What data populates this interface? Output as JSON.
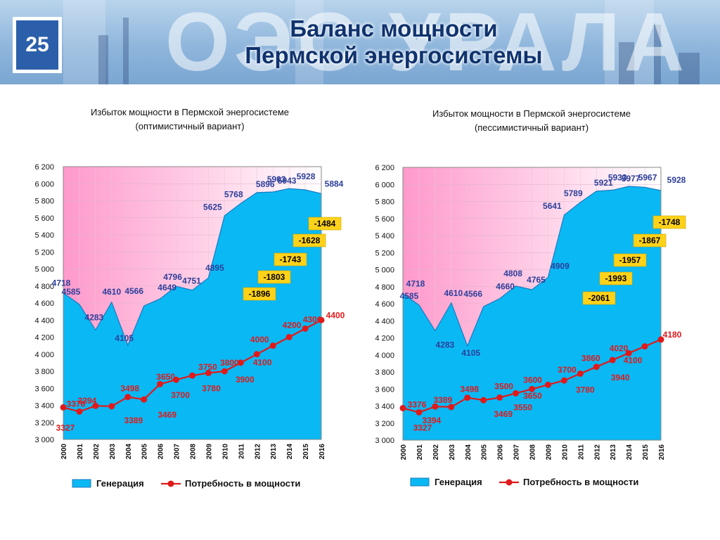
{
  "slide": {
    "number": "25",
    "logo_text": "ОЭС УРАЛА",
    "title_line1": "Баланс мощности",
    "title_line2": "Пермской энергосистемы"
  },
  "colors": {
    "generation_fill": "#0ab8f4",
    "generation_edge": "#1a7bbf",
    "demand": "#e01a1a",
    "gen_label": "#2d3f9a",
    "balance_box": "#ffd21a",
    "surplus_gradient_top": "#ff99cc",
    "surplus_gradient_bottom": "#ffffff"
  },
  "chart_data": [
    {
      "type": "area",
      "title_line1": "Избыток мощности в Пермской энергосистеме",
      "title_line2": "(оптимистичный вариант)",
      "x": [
        "2000",
        "2001",
        "2002",
        "2003",
        "2004",
        "2005",
        "2006",
        "2007",
        "2008",
        "2009",
        "2010",
        "2011",
        "2012",
        "2013",
        "2014",
        "2015",
        "2016"
      ],
      "ylim": [
        3000,
        6200
      ],
      "yticks": [
        "3 000",
        "3 200",
        "3 400",
        "3 600",
        "3 800",
        "4 000",
        "4 200",
        "4 400",
        "4 600",
        "4 800",
        "5 000",
        "5 200",
        "5 400",
        "5 600",
        "5 800",
        "6 000",
        "6 200"
      ],
      "series": [
        {
          "name": "Генерация",
          "type": "area",
          "values": [
            4718,
            4585,
            4283,
            4610,
            4105,
            4566,
            4649,
            4796,
            4751,
            4895,
            5625,
            5768,
            5896,
            5903,
            5943,
            5928,
            5884
          ],
          "labels": [
            "4718",
            "4585",
            "4283",
            "4610",
            "4105",
            "4566",
            "4649",
            "4796",
            "4751",
            "4895",
            "5625",
            "5768",
            "5896",
            "5903",
            "5943",
            "5928",
            "5884"
          ]
        },
        {
          "name": "Потребность в мощности",
          "type": "line",
          "values": [
            3376,
            3327,
            3394,
            3389,
            3498,
            3469,
            3650,
            3700,
            3750,
            3780,
            3800,
            3900,
            4000,
            4100,
            4200,
            4300,
            4400
          ],
          "labels": [
            "3376",
            "3327",
            "3394",
            "3389",
            "3498",
            "3469",
            "3650",
            "3700",
            "3750",
            "3780",
            "3800",
            "3900",
            "4000",
            "4100",
            "4200",
            "4300",
            "4400"
          ]
        }
      ],
      "balance_labels": [
        {
          "year": "2012",
          "text": "-1896"
        },
        {
          "year": "2013",
          "text": "-1803"
        },
        {
          "year": "2014",
          "text": "-1743"
        },
        {
          "year": "2015",
          "text": "-1628"
        },
        {
          "year": "2016",
          "text": "-1484"
        }
      ],
      "legend": [
        "Генерация",
        "Потребность в мощности"
      ]
    },
    {
      "type": "area",
      "title_line1": "Избыток мощности в Пермской энергосистеме",
      "title_line2": "(пессимистичный вариант)",
      "x": [
        "2000",
        "2001",
        "2002",
        "2003",
        "2004",
        "2005",
        "2006",
        "2007",
        "2008",
        "2009",
        "2010",
        "2011",
        "2012",
        "2013",
        "2014",
        "2015",
        "2016"
      ],
      "ylim": [
        3000,
        6200
      ],
      "yticks": [
        "3 000",
        "3 200",
        "3 400",
        "3 600",
        "3 800",
        "4 000",
        "4 200",
        "4 400",
        "4 600",
        "4 800",
        "5 000",
        "5 200",
        "5 400",
        "5 600",
        "5 800",
        "6 000",
        "6 200"
      ],
      "series": [
        {
          "name": "Генерация",
          "type": "area",
          "values": [
            4718,
            4585,
            4283,
            4610,
            4105,
            4566,
            4660,
            4808,
            4765,
            4909,
            5641,
            5789,
            5921,
            5933,
            5977,
            5967,
            5928
          ],
          "labels": [
            "4718",
            "4585",
            "4283",
            "4610",
            "4105",
            "4566",
            "4660",
            "4808",
            "4765",
            "4909",
            "5641",
            "5789",
            "5921",
            "5933",
            "5977",
            "5967",
            "5928"
          ]
        },
        {
          "name": "Потребность в мощности",
          "type": "line",
          "values": [
            3376,
            3327,
            3394,
            3389,
            3498,
            3469,
            3500,
            3550,
            3600,
            3650,
            3700,
            3780,
            3860,
            3940,
            4020,
            4100,
            4180
          ],
          "labels": [
            "3376",
            "3327",
            "3394",
            "3389",
            "3498",
            "3469",
            "3500",
            "3550",
            "3600",
            "3650",
            "3700",
            "3780",
            "3860",
            "3940",
            "4020",
            "4100",
            "4180"
          ]
        }
      ],
      "balance_labels": [
        {
          "year": "2012",
          "text": "-2061"
        },
        {
          "year": "2013",
          "text": "-1993"
        },
        {
          "year": "2014",
          "text": "-1957"
        },
        {
          "year": "2015",
          "text": "-1867"
        },
        {
          "year": "2016",
          "text": "-1748"
        }
      ],
      "legend": [
        "Генерация",
        "Потребность в мощности"
      ]
    }
  ]
}
